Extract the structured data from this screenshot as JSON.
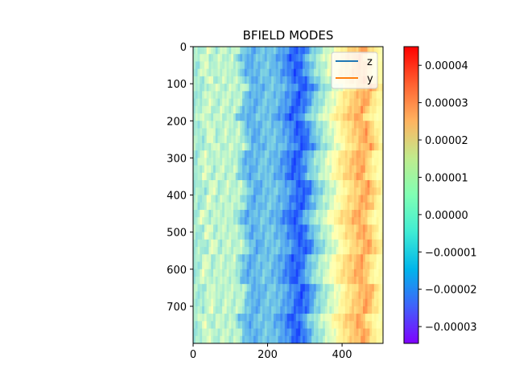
{
  "chart_data": {
    "type": "heatmap",
    "title": "BFIELD MODES",
    "xlabel": "",
    "ylabel": "",
    "xlim": [
      0,
      510
    ],
    "ylim": [
      800,
      0
    ],
    "x_ticks": [
      0,
      200,
      400
    ],
    "y_ticks": [
      0,
      100,
      200,
      300,
      400,
      500,
      600,
      700
    ],
    "x_tick_labels": [
      "0",
      "200",
      "400"
    ],
    "y_tick_labels": [
      "0",
      "100",
      "200",
      "300",
      "400",
      "500",
      "600",
      "700"
    ],
    "colormap": "rainbow",
    "color_range": [
      -3.45e-05,
      4.5e-05
    ],
    "colorbar_ticks": [
      4e-05,
      3e-05,
      2e-05,
      1e-05,
      0.0,
      -1e-05,
      -2e-05,
      -3e-05
    ],
    "colorbar_tick_labels": [
      "0.00004",
      "0.00003",
      "0.00002",
      "0.00001",
      "0.00000",
      "−0.00001",
      "−0.00002",
      "−0.00003"
    ],
    "column_profile": {
      "x": [
        0,
        20,
        40,
        60,
        80,
        100,
        120,
        140,
        160,
        180,
        200,
        220,
        240,
        260,
        280,
        300,
        320,
        340,
        360,
        380,
        400,
        420,
        440,
        460,
        480,
        500,
        510
      ],
      "values": [
        -4e-06,
        -6e-06,
        3e-06,
        -5e-06,
        0.0,
        -3e-06,
        -1e-06,
        -1.2e-05,
        -1.6e-05,
        -1.3e-05,
        -1.1e-05,
        -1.3e-05,
        -1.6e-05,
        -2e-05,
        -2.6e-05,
        -2.2e-05,
        -1.2e-05,
        -6e-06,
        -1e-06,
        4e-06,
        1.4e-05,
        1.9e-05,
        2.3e-05,
        2.8e-05,
        1.8e-05,
        9e-06,
        8e-06
      ]
    },
    "grid": false,
    "legend_position": "top-right",
    "series": [
      {
        "name": "z",
        "color": "#1f77b4",
        "values": []
      },
      {
        "name": "y",
        "color": "#ff7f0e",
        "values": []
      }
    ]
  }
}
